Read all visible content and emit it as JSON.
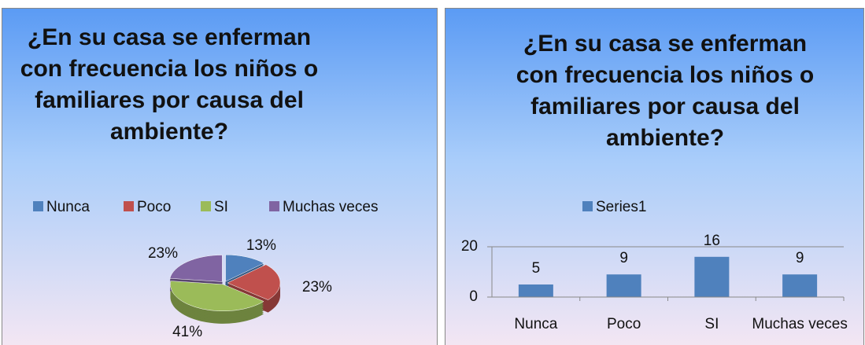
{
  "chart_data": [
    {
      "type": "pie",
      "title": "¿En su casa se enferman con frecuencia los niños o familiares por causa del ambiente?",
      "categories": [
        "Nunca",
        "Poco",
        "SI",
        "Muchas veces"
      ],
      "values": [
        13,
        23,
        41,
        23
      ],
      "value_labels": [
        "13%",
        "23%",
        "41%",
        "23%"
      ],
      "colors": [
        "#4f81bd",
        "#c0504d",
        "#9bbb59",
        "#8064a2"
      ],
      "legend": "top"
    },
    {
      "type": "bar",
      "title": "¿En su casa se enferman con frecuencia los niños o familiares por causa del ambiente?",
      "categories": [
        "Nunca",
        "Poco",
        "SI",
        "Muchas veces"
      ],
      "series": [
        {
          "name": "Series1",
          "color": "#4f81bd",
          "values": [
            5,
            9,
            16,
            9
          ]
        }
      ],
      "ylim": [
        0,
        20
      ],
      "yticks": [
        0,
        20
      ],
      "grid": true,
      "legend": "top"
    }
  ]
}
